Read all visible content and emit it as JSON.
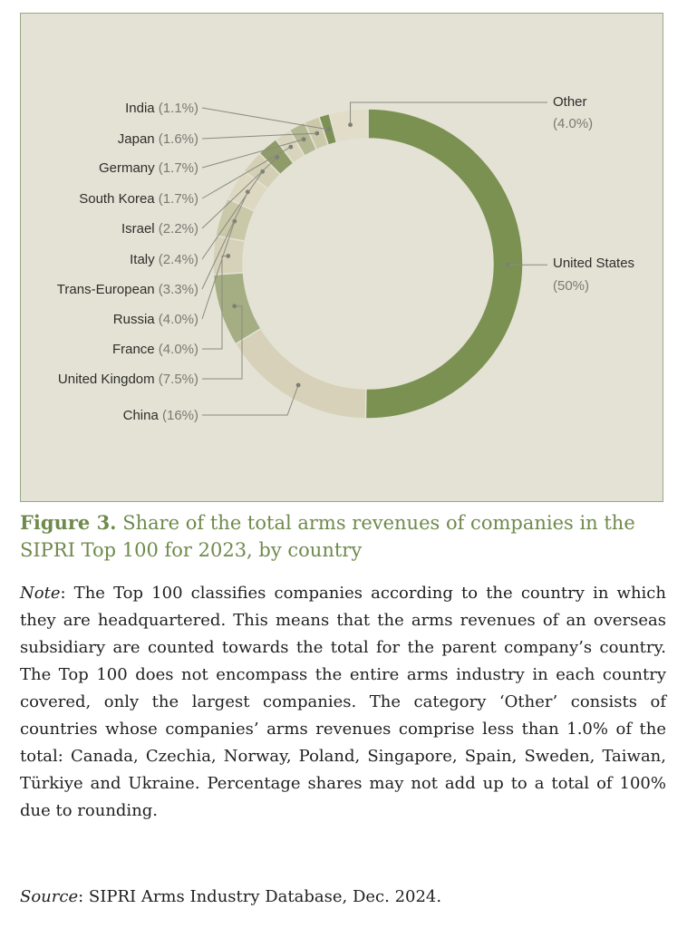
{
  "chart_data": {
    "type": "pie",
    "variant": "donut",
    "legend_position": "left-and-right leader-line labels",
    "slices": [
      {
        "name": "United States",
        "value": 50,
        "label": "(50%)",
        "color": "#7b9152"
      },
      {
        "name": "China",
        "value": 16,
        "label": "(16%)",
        "color": "#d6d1b8"
      },
      {
        "name": "United Kingdom",
        "value": 7.5,
        "label": "(7.5%)",
        "color": "#a5ad83"
      },
      {
        "name": "France",
        "value": 4.0,
        "label": "(4.0%)",
        "color": "#d5d2b9"
      },
      {
        "name": "Russia",
        "value": 4.0,
        "label": "(4.0%)",
        "color": "#c9c8a8"
      },
      {
        "name": "Trans-European",
        "value": 3.3,
        "label": "(3.3%)",
        "color": "#dcd8c1"
      },
      {
        "name": "Italy",
        "value": 2.4,
        "label": "(2.4%)",
        "color": "#d3d0b5"
      },
      {
        "name": "Israel",
        "value": 2.2,
        "label": "(2.2%)",
        "color": "#8f9c6a"
      },
      {
        "name": "South Korea",
        "value": 1.7,
        "label": "(1.7%)",
        "color": "#d9d5bd"
      },
      {
        "name": "Germany",
        "value": 1.7,
        "label": "(1.7%)",
        "color": "#b3b792"
      },
      {
        "name": "Japan",
        "value": 1.6,
        "label": "(1.6%)",
        "color": "#ccc9ab"
      },
      {
        "name": "India",
        "value": 1.1,
        "label": "(1.1%)",
        "color": "#7e9155"
      },
      {
        "name": "Other",
        "value": 4.0,
        "label": "(4.0%)",
        "color": "#e1ddc9"
      }
    ]
  },
  "colors": {
    "panel_bg": "#e4e2d5",
    "panel_border": "#9aa786",
    "accent_green": "#6f8a4c",
    "leader_line": "#8a8a80",
    "label_text": "#2e2e2a",
    "pct_text": "#7a7a72"
  },
  "caption": {
    "figure_label": "Figure 3.",
    "title": "Share of the total arms revenues of companies in the SIPRI Top 100 for 2023, by country"
  },
  "note": {
    "label": "Note",
    "text": ": The Top 100 classifies companies according to the country in which they are headquartered. This means that the arms revenues of an overseas subsidiary are counted towards the total for the parent company’s country. The Top 100 does not encompass the entire arms industry in each country covered, only the largest companies. The category ‘Other’ consists of countries whose companies’ arms revenues comprise less than 1.0% of the total: Canada, Czechia, Norway, Poland, Singapore, Spain, Sweden, Taiwan, Türkiye and Ukraine. Percentage shares may not add up to a total of 100% due to rounding."
  },
  "source": {
    "label": "Source",
    "text": ": SIPRI Arms Industry Database, Dec. 2024."
  }
}
